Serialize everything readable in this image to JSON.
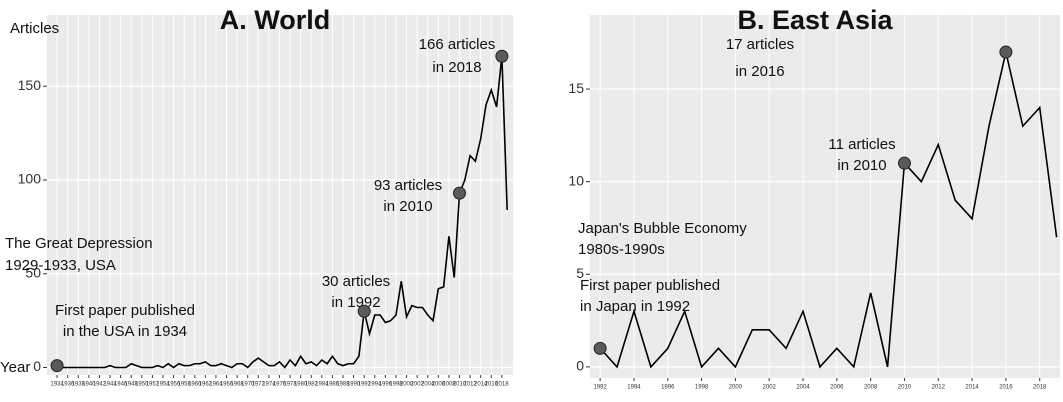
{
  "chart_data": [
    {
      "type": "line",
      "title": "A. World",
      "ylabel": "Articles",
      "xlabel": "Year",
      "color": "#000000",
      "grid": true,
      "x": [
        1934,
        1935,
        1936,
        1937,
        1938,
        1939,
        1940,
        1941,
        1942,
        1943,
        1944,
        1945,
        1946,
        1947,
        1948,
        1949,
        1950,
        1951,
        1952,
        1953,
        1954,
        1955,
        1956,
        1957,
        1958,
        1959,
        1960,
        1961,
        1962,
        1963,
        1964,
        1965,
        1966,
        1967,
        1968,
        1969,
        1970,
        1971,
        1972,
        1973,
        1974,
        1975,
        1976,
        1977,
        1978,
        1979,
        1980,
        1981,
        1982,
        1983,
        1984,
        1985,
        1986,
        1987,
        1988,
        1989,
        1990,
        1991,
        1992,
        1993,
        1994,
        1995,
        1996,
        1997,
        1998,
        1999,
        2000,
        2001,
        2002,
        2003,
        2004,
        2005,
        2006,
        2007,
        2008,
        2009,
        2010,
        2011,
        2012,
        2013,
        2014,
        2015,
        2016,
        2017,
        2018,
        2019
      ],
      "values": [
        1,
        0,
        0,
        0,
        0,
        0,
        0,
        0,
        0,
        0,
        1,
        0,
        0,
        0,
        2,
        1,
        0,
        0,
        0,
        1,
        0,
        2,
        0,
        2,
        1,
        1,
        2,
        2,
        3,
        1,
        1,
        2,
        1,
        0,
        2,
        2,
        0,
        3,
        5,
        3,
        1,
        1,
        3,
        0,
        4,
        1,
        6,
        2,
        3,
        1,
        4,
        2,
        6,
        2,
        1,
        2,
        2,
        6,
        30,
        18,
        28,
        28,
        24,
        25,
        28,
        46,
        27,
        33,
        32,
        32,
        28,
        25,
        42,
        43,
        70,
        48,
        93,
        100,
        113,
        110,
        122,
        140,
        148,
        139,
        166,
        84
      ],
      "xlim": [
        1932.1,
        2020.1
      ],
      "xticks": [
        1934,
        1936,
        1938,
        1940,
        1942,
        1944,
        1946,
        1948,
        1950,
        1952,
        1954,
        1956,
        1958,
        1960,
        1962,
        1964,
        1966,
        1968,
        1970,
        1972,
        1974,
        1976,
        1978,
        1980,
        1982,
        1984,
        1986,
        1988,
        1990,
        1992,
        1994,
        1996,
        1998,
        2000,
        2002,
        2004,
        2006,
        2008,
        2010,
        2012,
        2014,
        2016,
        2018
      ],
      "ylim": [
        -4,
        188
      ],
      "yticks": [
        0,
        50,
        100,
        150
      ],
      "annotations": [
        {
          "lines": [
            "166 articles",
            "in 2018"
          ],
          "marker_x": 2018
        },
        {
          "lines": [
            "93 articles",
            "in 2010"
          ],
          "marker_x": 2010
        },
        {
          "lines": [
            "30 articles",
            "in 1992"
          ],
          "marker_x": 1992
        },
        {
          "lines": [
            "The Great Depression",
            "1929-1933, USA"
          ]
        },
        {
          "lines": [
            "First paper published",
            "in the USA in 1934"
          ],
          "marker_x": 1934
        }
      ]
    },
    {
      "type": "line",
      "title": "B. East Asia",
      "color": "#000000",
      "grid": true,
      "x": [
        1992,
        1993,
        1994,
        1995,
        1996,
        1997,
        1998,
        1999,
        2000,
        2001,
        2002,
        2003,
        2004,
        2005,
        2006,
        2007,
        2008,
        2009,
        2010,
        2011,
        2012,
        2013,
        2014,
        2015,
        2016,
        2017,
        2018,
        2019
      ],
      "values": [
        1,
        0,
        3,
        0,
        1,
        3,
        0,
        1,
        0,
        2,
        2,
        1,
        3,
        0,
        1,
        0,
        4,
        0,
        11,
        10,
        12,
        9,
        8,
        13,
        17,
        13,
        14,
        7
      ],
      "xlim": [
        1991.4,
        2019.2
      ],
      "xticks": [
        1992,
        1994,
        1996,
        1998,
        2000,
        2002,
        2004,
        2006,
        2008,
        2010,
        2012,
        2014,
        2016,
        2018
      ],
      "ylim": [
        -0.6,
        19
      ],
      "yticks": [
        0,
        5,
        10,
        15
      ],
      "annotations": [
        {
          "lines": [
            "17 articles",
            "in 2016"
          ],
          "marker_x": 2016
        },
        {
          "lines": [
            "11 articles",
            "in 2010"
          ],
          "marker_x": 2010
        },
        {
          "lines": [
            "Japan's Bubble Economy",
            "1980s-1990s"
          ]
        },
        {
          "lines": [
            "First paper published",
            "in Japan in 1992"
          ],
          "marker_x": 1992
        }
      ]
    }
  ]
}
